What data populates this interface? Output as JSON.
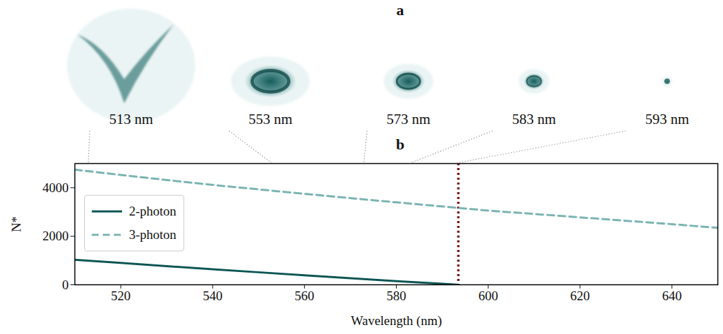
{
  "chart_data": {
    "type": "line",
    "title": "b",
    "x_label": "Wavelength (nm)",
    "y_label": "N*",
    "xlim": [
      510,
      650
    ],
    "xticks": [
      520,
      540,
      560,
      580,
      600,
      620,
      640
    ],
    "ylim": [
      0,
      5000
    ],
    "yticks": [
      0,
      2000,
      4000
    ],
    "legend": "upper left",
    "series": [
      {
        "name": "2-photon",
        "color": "#0b5553",
        "line_style": "solid",
        "x": [
          510,
          520,
          530,
          540,
          550,
          560,
          570,
          580,
          590,
          593.5
        ],
        "values": [
          1030,
          900,
          770,
          640,
          515,
          390,
          270,
          150,
          40,
          0
        ]
      },
      {
        "name": "3-photon",
        "color": "#7ab3b3",
        "line_style": "dashed",
        "x": [
          510,
          520,
          530,
          540,
          560,
          580,
          600,
          620,
          640,
          650
        ],
        "values": [
          4750,
          4530,
          4320,
          4120,
          3750,
          3400,
          3060,
          2780,
          2500,
          2350
        ]
      }
    ],
    "vertical_line": {
      "x": 593.5,
      "color": "#7b1518",
      "line_style": "dotted"
    }
  },
  "panel_a": {
    "title": "a",
    "images": [
      {
        "label": "513 nm",
        "wavelength": 513
      },
      {
        "label": "553 nm",
        "wavelength": 553
      },
      {
        "label": "573 nm",
        "wavelength": 573
      },
      {
        "label": "583 nm",
        "wavelength": 583
      },
      {
        "label": "593 nm",
        "wavelength": 593
      }
    ]
  }
}
